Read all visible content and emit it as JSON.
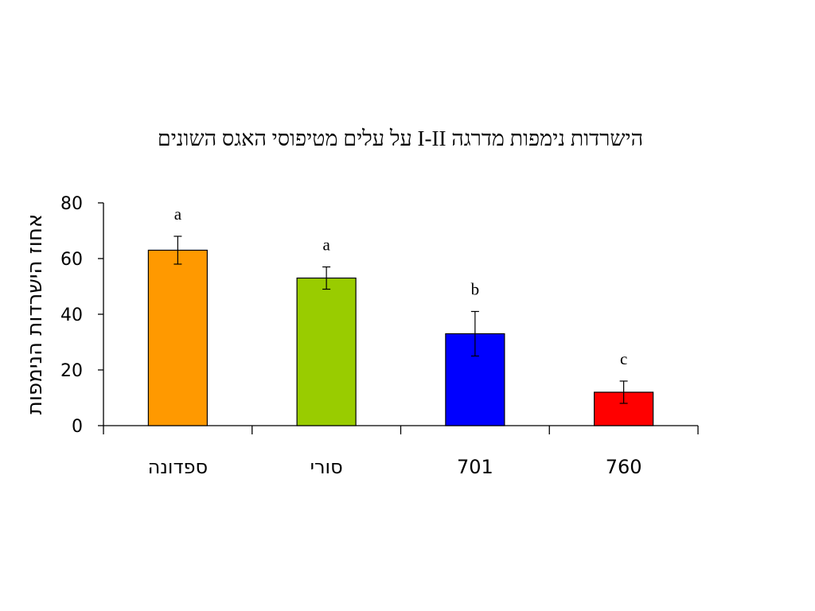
{
  "chart_data": {
    "type": "bar",
    "title": "הישרדות נימפות מדרגה I-II על עלים מטיפוסי האגס השונים",
    "xlabel": "",
    "ylabel": "אחוז הישרדות הנימפות",
    "ylim": [
      0,
      80
    ],
    "yticks": [
      0,
      20,
      40,
      60,
      80
    ],
    "grid": false,
    "legend": "none",
    "categories": [
      "ספדונה",
      "סורי",
      "701",
      "760"
    ],
    "values": [
      63,
      53,
      33,
      12
    ],
    "error": [
      5,
      4,
      8,
      4
    ],
    "significance": [
      "a",
      "a",
      "b",
      "c"
    ],
    "colors": [
      "#ff9900",
      "#99cc00",
      "#0000ff",
      "#ff0000"
    ]
  }
}
